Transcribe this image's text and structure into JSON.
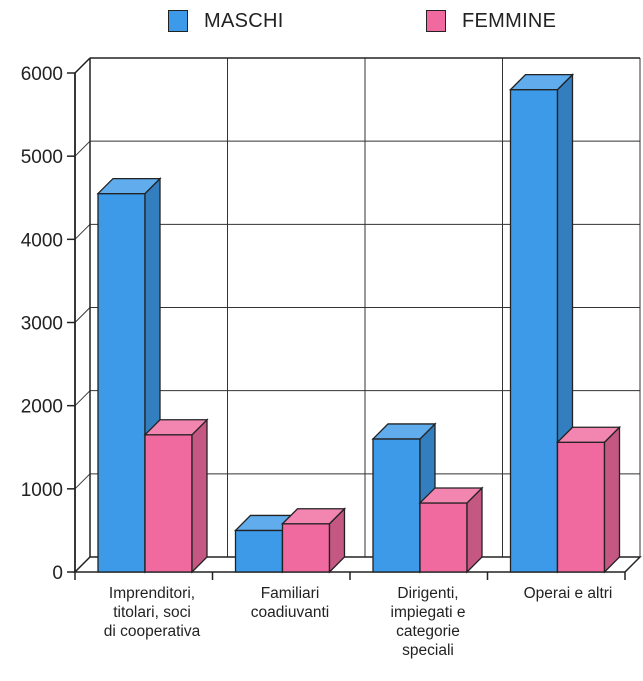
{
  "chart_data": {
    "type": "bar",
    "categories": [
      "Imprenditori, titolari, soci di cooperativa",
      "Familiari coadiuvanti",
      "Dirigenti, impiegati e categorie speciali",
      "Operai e altri"
    ],
    "category_lines": [
      [
        "Imprenditori,",
        "titolari, soci",
        "di cooperativa"
      ],
      [
        "Familiari",
        "coadiuvanti"
      ],
      [
        "Dirigenti,",
        "impiegati e",
        "categorie",
        "speciali"
      ],
      [
        "Operai e altri"
      ]
    ],
    "series": [
      {
        "name": "MASCHI",
        "values": [
          4550,
          500,
          1600,
          5800
        ],
        "color": "#3d9ae8"
      },
      {
        "name": "FEMMINE",
        "values": [
          1650,
          580,
          830,
          1560
        ],
        "color": "#f06aa0"
      }
    ],
    "yticks": [
      0,
      1000,
      2000,
      3000,
      4000,
      5000,
      6000
    ],
    "ylim": [
      0,
      6000
    ],
    "grid": true,
    "legend_position": "top"
  }
}
